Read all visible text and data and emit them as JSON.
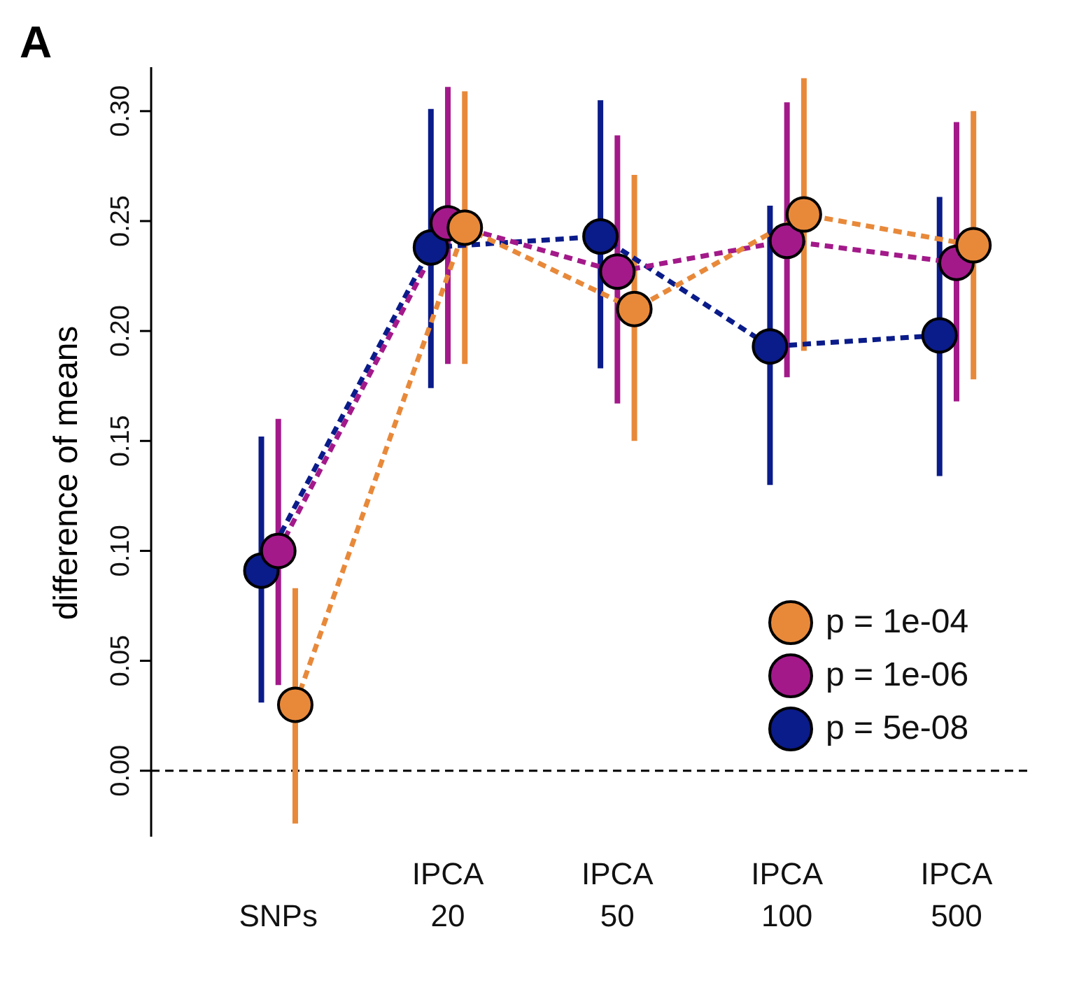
{
  "chart_data": {
    "type": "line",
    "ylabel": "difference of means",
    "annotations": [
      "A"
    ],
    "categories": [
      "SNPs",
      "IPCA\n20",
      "IPCA\n50",
      "IPCA\n100",
      "IPCA\n500"
    ],
    "series": [
      {
        "name": "p = 1e-04",
        "color": "#e8893a",
        "values": [
          0.03,
          0.247,
          0.21,
          0.253,
          0.239
        ],
        "errors": [
          [
            -0.024,
            0.083
          ],
          [
            0.185,
            0.309
          ],
          [
            0.15,
            0.271
          ],
          [
            0.191,
            0.315
          ],
          [
            0.178,
            0.3
          ]
        ]
      },
      {
        "name": "p = 1e-06",
        "color": "#a3198a",
        "values": [
          0.1,
          0.249,
          0.227,
          0.241,
          0.231
        ],
        "errors": [
          [
            0.039,
            0.16
          ],
          [
            0.185,
            0.311
          ],
          [
            0.167,
            0.289
          ],
          [
            0.179,
            0.304
          ],
          [
            0.168,
            0.295
          ]
        ]
      },
      {
        "name": "p = 5e-08",
        "color": "#0a1b8a",
        "values": [
          0.091,
          0.238,
          0.243,
          0.193,
          0.198
        ],
        "errors": [
          [
            0.031,
            0.152
          ],
          [
            0.174,
            0.301
          ],
          [
            0.183,
            0.305
          ],
          [
            0.13,
            0.257
          ],
          [
            0.134,
            0.261
          ]
        ]
      }
    ],
    "ylim": [
      -0.03,
      0.32
    ],
    "yticks": [
      {
        "value": 0,
        "label": "0.00"
      },
      {
        "value": 0.05,
        "label": "0.05"
      },
      {
        "value": 0.1,
        "label": "0.10"
      },
      {
        "value": 0.15,
        "label": "0.15"
      },
      {
        "value": 0.2,
        "label": "0.20"
      },
      {
        "value": 0.25,
        "label": "0.25"
      },
      {
        "value": 0.3,
        "label": "0.30"
      }
    ],
    "ref_lines": [
      {
        "axis": "y",
        "value": 0,
        "color": "#000000",
        "line_style": "dashed"
      }
    ],
    "grid": false,
    "legend": "bottom right",
    "marker": "circle",
    "line_style": "dashed"
  }
}
